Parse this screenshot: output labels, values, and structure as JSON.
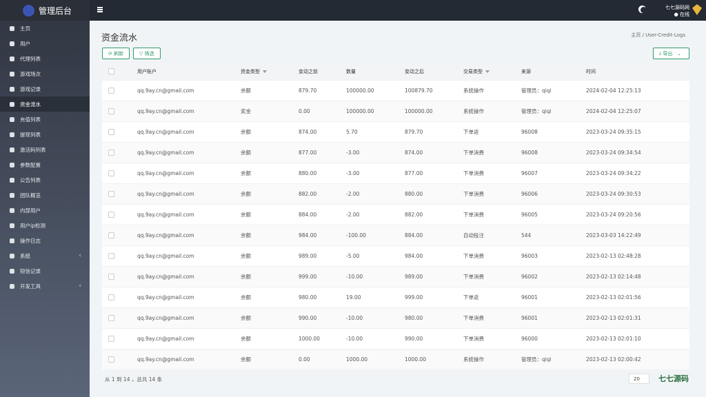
{
  "brand": "管理后台",
  "user": {
    "name": "七七源码网",
    "status": "在线"
  },
  "menu": [
    "主页",
    "用户",
    "代理列表",
    "游戏场次",
    "游戏记录",
    "资金流水",
    "充值列表",
    "提现列表",
    "激活码列表",
    "参数配置",
    "公告列表",
    "团队概览",
    "内部用户",
    "用户ip检测",
    "操作日志",
    "系统",
    "短信记录",
    "开发工具"
  ],
  "page": {
    "title": "资金流水",
    "breadcrumb": [
      "主页",
      "User-Credit-Logs"
    ],
    "buttons": [
      "刷新",
      "筛选"
    ],
    "export": "导出"
  },
  "table": {
    "columns": [
      "用户账户",
      "资金类型",
      "变动之前",
      "数量",
      "变动之后",
      "交易类型",
      "来源",
      "时间"
    ],
    "rows": [
      [
        "qq.9ay.cn@gmail.com",
        "余额",
        "879.70",
        "100000.00",
        "100879.70",
        "系统操作",
        "管理员：qiqi",
        "2024-02-04 12:25:13"
      ],
      [
        "qq.9ay.cn@gmail.com",
        "奖金",
        "0.00",
        "100000.00",
        "100000.00",
        "系统操作",
        "管理员：qiqi",
        "2024-02-04 12:25:07"
      ],
      [
        "qq.9ay.cn@gmail.com",
        "余额",
        "874.00",
        "5.70",
        "879.70",
        "下单返",
        "96008",
        "2023-03-24 09:35:15"
      ],
      [
        "qq.9ay.cn@gmail.com",
        "余额",
        "877.00",
        "-3.00",
        "874.00",
        "下单消费",
        "96008",
        "2023-03-24 09:34:54"
      ],
      [
        "qq.9ay.cn@gmail.com",
        "余额",
        "880.00",
        "-3.00",
        "877.00",
        "下单消费",
        "96007",
        "2023-03-24 09:34:22"
      ],
      [
        "qq.9ay.cn@gmail.com",
        "余额",
        "882.00",
        "-2.00",
        "880.00",
        "下单消费",
        "96006",
        "2023-03-24 09:30:53"
      ],
      [
        "qq.9ay.cn@gmail.com",
        "余额",
        "884.00",
        "-2.00",
        "882.00",
        "下单消费",
        "96005",
        "2023-03-24 09:20:56"
      ],
      [
        "qq.9ay.cn@gmail.com",
        "余额",
        "984.00",
        "-100.00",
        "884.00",
        "自动投注",
        "544",
        "2023-03-03 14:22:49"
      ],
      [
        "qq.9ay.cn@gmail.com",
        "余额",
        "989.00",
        "-5.00",
        "984.00",
        "下单消费",
        "96003",
        "2023-02-13 02:48:28"
      ],
      [
        "qq.9ay.cn@gmail.com",
        "余额",
        "999.00",
        "-10.00",
        "989.00",
        "下单消费",
        "96002",
        "2023-02-13 02:14:48"
      ],
      [
        "qq.9ay.cn@gmail.com",
        "余额",
        "980.00",
        "19.00",
        "999.00",
        "下单返",
        "96001",
        "2023-02-13 02:01:56"
      ],
      [
        "qq.9ay.cn@gmail.com",
        "余额",
        "990.00",
        "-10.00",
        "980.00",
        "下单消费",
        "96001",
        "2023-02-13 02:01:31"
      ],
      [
        "qq.9ay.cn@gmail.com",
        "余额",
        "1000.00",
        "-10.00",
        "990.00",
        "下单消费",
        "96000",
        "2023-02-13 02:01:10"
      ],
      [
        "qq.9ay.cn@gmail.com",
        "余额",
        "0.00",
        "1000.00",
        "1000.00",
        "系统操作",
        "管理员：qiqi",
        "2023-02-13 02:00:42"
      ]
    ]
  },
  "footer": {
    "summary": "从 1 到 14 ，总共 14 条",
    "page_size": "20",
    "watermark": "七七源码"
  }
}
